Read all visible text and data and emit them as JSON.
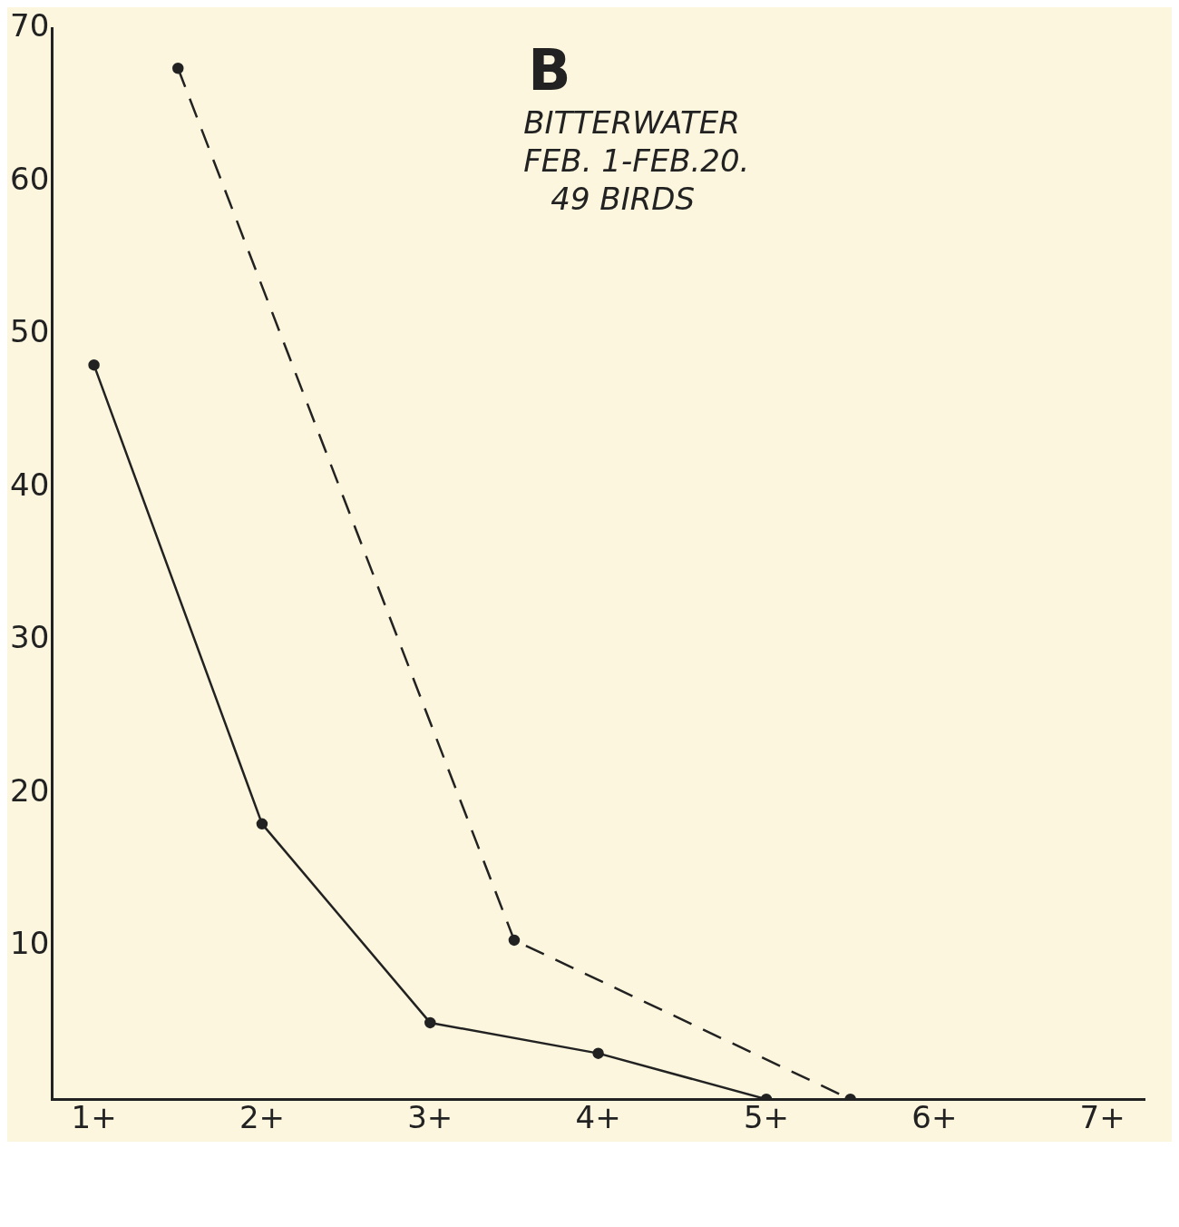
{
  "chart_data": {
    "type": "line",
    "title": "B",
    "annotations": [
      "BITTERWATER",
      "FEB. 1-FEB.20.",
      "49 BIRDS"
    ],
    "categories": [
      "1+",
      null,
      "2+",
      null,
      "3+",
      null,
      "4+",
      null,
      "5+",
      null,
      "6+",
      null,
      "7+"
    ],
    "series": [
      {
        "color": "#222222",
        "line_style": "solid",
        "values": [
          48,
          null,
          18,
          null,
          5,
          null,
          3,
          null,
          0,
          null,
          null,
          null,
          null
        ]
      },
      {
        "color": "#222222",
        "line_style": "dashed",
        "values": [
          null,
          67.4,
          null,
          null,
          null,
          10.4,
          null,
          null,
          null,
          0,
          null,
          null,
          null
        ]
      }
    ],
    "ylim": [
      0,
      70
    ],
    "yticks": [
      10,
      20,
      30,
      40,
      50,
      60,
      70
    ],
    "grid": false,
    "legend": false,
    "marker": "circle"
  }
}
